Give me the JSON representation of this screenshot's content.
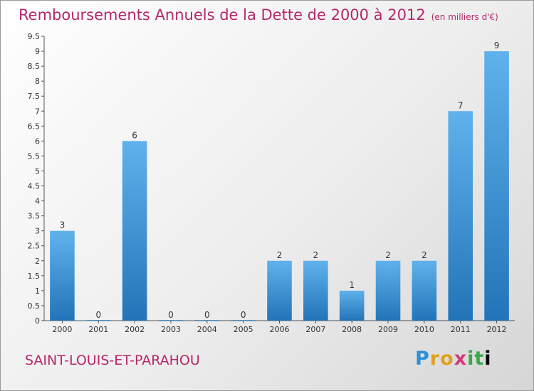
{
  "title": "Remboursements Annuels de la Dette de 2000 à 2012",
  "subtitle": "(en milliers d'€)",
  "commune": "SAINT-LOUIS-ET-PARAHOU",
  "logo": [
    "P",
    "r",
    "o",
    "x",
    "i",
    "t",
    "i"
  ],
  "colors": {
    "title": "#b4286a",
    "bar_top": "#5fb2ec",
    "bar_bottom": "#2274b8"
  },
  "chart_data": {
    "type": "bar",
    "title": "Remboursements Annuels de la Dette de 2000 à 2012",
    "subtitle": "(en milliers d'€)",
    "categories": [
      "2000",
      "2001",
      "2002",
      "2003",
      "2004",
      "2005",
      "2006",
      "2007",
      "2008",
      "2009",
      "2010",
      "2011",
      "2012"
    ],
    "values": [
      3,
      0,
      6,
      0,
      0,
      0,
      2,
      2,
      1,
      2,
      2,
      7,
      9
    ],
    "data_labels": [
      "3",
      "0",
      "6",
      "0",
      "0",
      "0",
      "2",
      "2",
      "1",
      "2",
      "2",
      "7",
      "9"
    ],
    "ylim": [
      0,
      9.5
    ],
    "yticks": [
      0,
      0.5,
      1,
      1.5,
      2,
      2.5,
      3,
      3.5,
      4,
      4.5,
      5,
      5.5,
      6,
      6.5,
      7,
      7.5,
      8,
      8.5,
      9,
      9.5
    ],
    "ytick_labels": [
      "0",
      "0.5",
      "1",
      "1.5",
      "2",
      "2.5",
      "3",
      "3.5",
      "4",
      "4.5",
      "5",
      "5.5",
      "6",
      "6.5",
      "7",
      "7.5",
      "8",
      "8.5",
      "9",
      "9.5"
    ],
    "grid": false,
    "legend": "none"
  }
}
